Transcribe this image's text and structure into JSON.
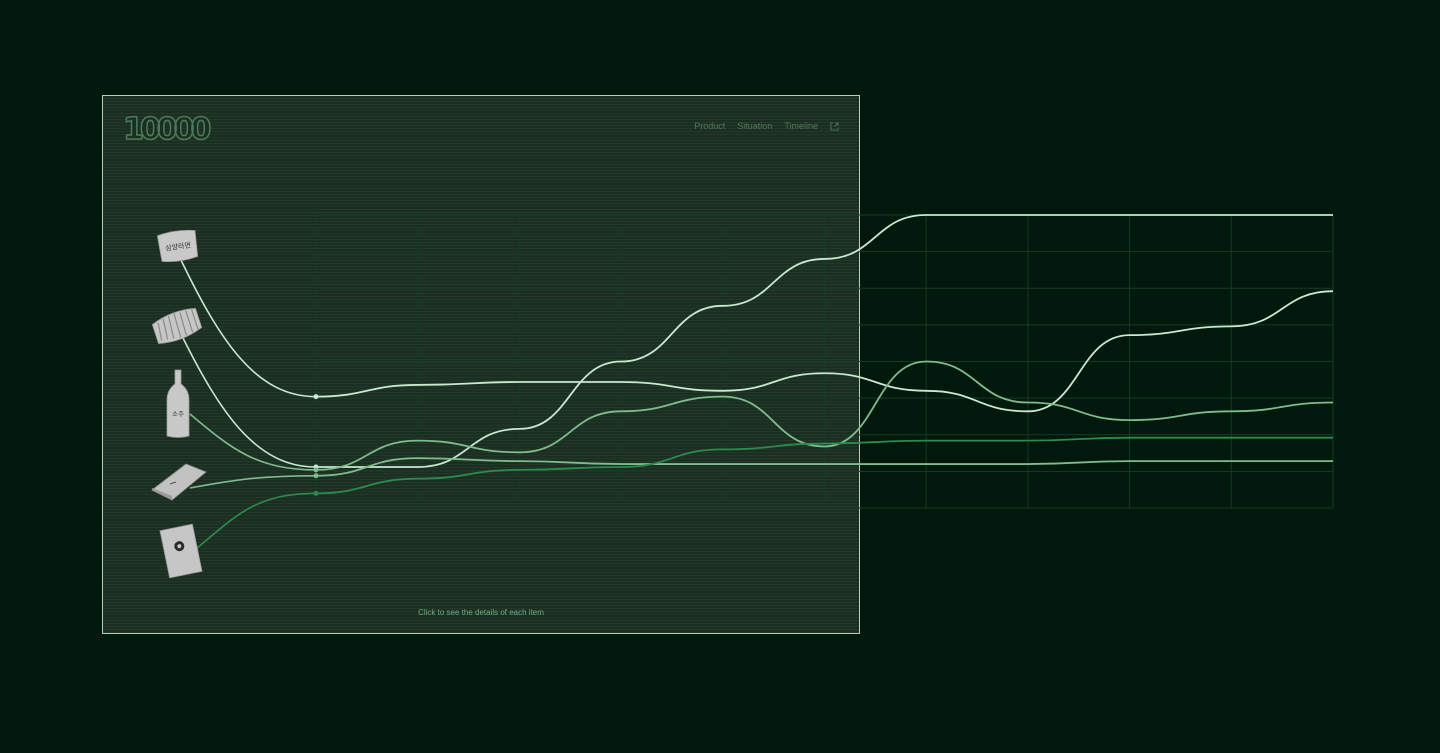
{
  "logo": {
    "text": "10000"
  },
  "nav": {
    "items": [
      "Product",
      "Situation",
      "Timeline"
    ],
    "external_icon": "external-link-icon"
  },
  "hint": "Click to see the details of each item",
  "products": [
    {
      "name": "ramen-pack",
      "label": "삼양라면",
      "icon": "ramen-pack-icon"
    },
    {
      "name": "snack-bag",
      "label": "",
      "icon": "snack-bag-icon"
    },
    {
      "name": "soju-bottle",
      "label": "소주",
      "icon": "soju-bottle-icon"
    },
    {
      "name": "box-pack",
      "label": "",
      "icon": "box-pack-icon"
    },
    {
      "name": "pouch-pack",
      "label": "",
      "icon": "pouch-pack-icon"
    }
  ],
  "colors": {
    "background": "#00190c",
    "card": "#1b2e22",
    "border": "#b9cbb9",
    "line_light": "#c8e8cf",
    "line_mid": "#7fbb8c",
    "line_dark": "#2e8a4c",
    "grid": "#173a24"
  },
  "chart_data": {
    "type": "line",
    "title": "",
    "xlabel": "",
    "ylabel": "",
    "x": [
      0,
      1,
      2,
      3,
      4,
      5,
      6,
      7,
      8,
      9,
      10
    ],
    "ylim": [
      0,
      100
    ],
    "grid": true,
    "series": [
      {
        "values": [
          38,
          42,
          43,
          43,
          40,
          46,
          40,
          33,
          59,
          62,
          74
        ]
      },
      {
        "values": [
          14,
          14,
          27,
          50,
          69,
          85,
          100,
          100,
          100,
          100,
          100
        ]
      },
      {
        "values": [
          13,
          23,
          19,
          33,
          38,
          21,
          50,
          36,
          30,
          33,
          36
        ]
      },
      {
        "values": [
          11,
          17,
          16,
          15,
          15,
          15,
          15,
          15,
          16,
          16,
          16
        ]
      },
      {
        "values": [
          5,
          10,
          13,
          14,
          20,
          22,
          23,
          23,
          24,
          24,
          24
        ]
      }
    ]
  }
}
